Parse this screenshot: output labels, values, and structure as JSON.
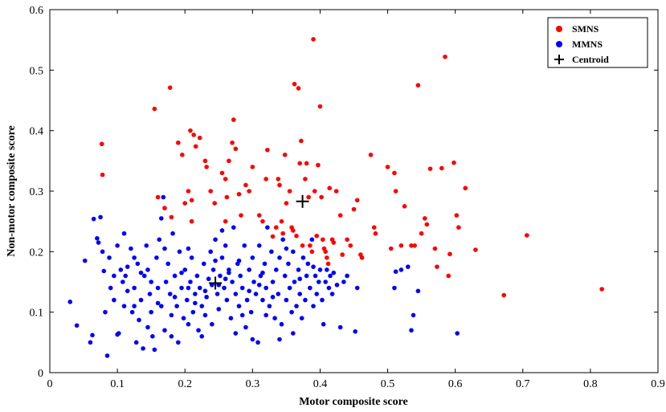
{
  "chart_data": {
    "type": "scatter",
    "xlabel": "Motor composite score",
    "ylabel": "Non-motor composite score",
    "xlim": [
      0,
      0.9
    ],
    "ylim": [
      0,
      0.6
    ],
    "x_ticks": [
      "0",
      "0.1",
      "0.2",
      "0.3",
      "0.4",
      "0.5",
      "0.6",
      "0.7",
      "0.8",
      "0.9"
    ],
    "y_ticks": [
      "0",
      "0.1",
      "0.2",
      "0.3",
      "0.4",
      "0.5",
      "0.6"
    ],
    "grid": false,
    "legend_position": "top-right",
    "series": [
      {
        "name": "SMNS",
        "color": "#ff0000",
        "marker": "circle",
        "points": [
          [
            0.077,
            0.378
          ],
          [
            0.078,
            0.327
          ],
          [
            0.155,
            0.436
          ],
          [
            0.178,
            0.471
          ],
          [
            0.16,
            0.29
          ],
          [
            0.17,
            0.272
          ],
          [
            0.18,
            0.257
          ],
          [
            0.19,
            0.38
          ],
          [
            0.196,
            0.36
          ],
          [
            0.205,
            0.3
          ],
          [
            0.21,
            0.285
          ],
          [
            0.208,
            0.4
          ],
          [
            0.213,
            0.393
          ],
          [
            0.216,
            0.374
          ],
          [
            0.222,
            0.388
          ],
          [
            0.23,
            0.35
          ],
          [
            0.232,
            0.34
          ],
          [
            0.238,
            0.3
          ],
          [
            0.244,
            0.28
          ],
          [
            0.2,
            0.28
          ],
          [
            0.21,
            0.25
          ],
          [
            0.255,
            0.33
          ],
          [
            0.26,
            0.32
          ],
          [
            0.262,
            0.29
          ],
          [
            0.26,
            0.25
          ],
          [
            0.265,
            0.35
          ],
          [
            0.27,
            0.38
          ],
          [
            0.272,
            0.418
          ],
          [
            0.275,
            0.37
          ],
          [
            0.28,
            0.295
          ],
          [
            0.283,
            0.26
          ],
          [
            0.29,
            0.31
          ],
          [
            0.295,
            0.3
          ],
          [
            0.3,
            0.34
          ],
          [
            0.31,
            0.26
          ],
          [
            0.315,
            0.25
          ],
          [
            0.32,
            0.32
          ],
          [
            0.322,
            0.368
          ],
          [
            0.33,
            0.225
          ],
          [
            0.335,
            0.24
          ],
          [
            0.338,
            0.32
          ],
          [
            0.34,
            0.31
          ],
          [
            0.343,
            0.25
          ],
          [
            0.345,
            0.23
          ],
          [
            0.348,
            0.36
          ],
          [
            0.35,
            0.28
          ],
          [
            0.355,
            0.3
          ],
          [
            0.358,
            0.24
          ],
          [
            0.36,
            0.235
          ],
          [
            0.362,
            0.477
          ],
          [
            0.365,
            0.226
          ],
          [
            0.368,
            0.47
          ],
          [
            0.37,
            0.346
          ],
          [
            0.372,
            0.383
          ],
          [
            0.374,
            0.21
          ],
          [
            0.378,
            0.32
          ],
          [
            0.38,
            0.346
          ],
          [
            0.383,
            0.29
          ],
          [
            0.385,
            0.21
          ],
          [
            0.388,
            0.2
          ],
          [
            0.39,
            0.551
          ],
          [
            0.392,
            0.3
          ],
          [
            0.395,
            0.226
          ],
          [
            0.397,
            0.343
          ],
          [
            0.4,
            0.44
          ],
          [
            0.402,
            0.29
          ],
          [
            0.404,
            0.22
          ],
          [
            0.406,
            0.205
          ],
          [
            0.408,
            0.2
          ],
          [
            0.41,
            0.19
          ],
          [
            0.412,
            0.18
          ],
          [
            0.414,
            0.305
          ],
          [
            0.418,
            0.22
          ],
          [
            0.42,
            0.215
          ],
          [
            0.424,
            0.3
          ],
          [
            0.43,
            0.26
          ],
          [
            0.433,
            0.195
          ],
          [
            0.44,
            0.22
          ],
          [
            0.445,
            0.21
          ],
          [
            0.45,
            0.27
          ],
          [
            0.455,
            0.285
          ],
          [
            0.46,
            0.195
          ],
          [
            0.462,
            0.19
          ],
          [
            0.475,
            0.36
          ],
          [
            0.48,
            0.24
          ],
          [
            0.482,
            0.23
          ],
          [
            0.5,
            0.34
          ],
          [
            0.505,
            0.205
          ],
          [
            0.51,
            0.33
          ],
          [
            0.512,
            0.3
          ],
          [
            0.52,
            0.21
          ],
          [
            0.525,
            0.275
          ],
          [
            0.535,
            0.21
          ],
          [
            0.54,
            0.21
          ],
          [
            0.545,
            0.475
          ],
          [
            0.55,
            0.23
          ],
          [
            0.555,
            0.255
          ],
          [
            0.558,
            0.245
          ],
          [
            0.563,
            0.337
          ],
          [
            0.57,
            0.205
          ],
          [
            0.573,
            0.175
          ],
          [
            0.58,
            0.338
          ],
          [
            0.585,
            0.522
          ],
          [
            0.59,
            0.16
          ],
          [
            0.592,
            0.196
          ],
          [
            0.598,
            0.347
          ],
          [
            0.602,
            0.26
          ],
          [
            0.605,
            0.24
          ],
          [
            0.615,
            0.305
          ],
          [
            0.63,
            0.203
          ],
          [
            0.672,
            0.128
          ],
          [
            0.706,
            0.227
          ],
          [
            0.817,
            0.138
          ]
        ]
      },
      {
        "name": "MMNS",
        "color": "#0000ff",
        "marker": "circle",
        "points": [
          [
            0.03,
            0.117
          ],
          [
            0.04,
            0.078
          ],
          [
            0.052,
            0.185
          ],
          [
            0.06,
            0.05
          ],
          [
            0.063,
            0.062
          ],
          [
            0.065,
            0.254
          ],
          [
            0.07,
            0.222
          ],
          [
            0.072,
            0.215
          ],
          [
            0.075,
            0.257
          ],
          [
            0.078,
            0.2
          ],
          [
            0.08,
            0.168
          ],
          [
            0.082,
            0.1
          ],
          [
            0.085,
            0.028
          ],
          [
            0.088,
            0.19
          ],
          [
            0.09,
            0.14
          ],
          [
            0.095,
            0.12
          ],
          [
            0.1,
            0.21
          ],
          [
            0.102,
            0.065
          ],
          [
            0.105,
            0.17
          ],
          [
            0.108,
            0.15
          ],
          [
            0.11,
            0.23
          ],
          [
            0.112,
            0.16
          ],
          [
            0.115,
            0.135
          ],
          [
            0.12,
            0.205
          ],
          [
            0.122,
            0.1
          ],
          [
            0.125,
            0.14
          ],
          [
            0.128,
            0.05
          ],
          [
            0.13,
            0.18
          ],
          [
            0.132,
            0.087
          ],
          [
            0.135,
            0.12
          ],
          [
            0.138,
            0.04
          ],
          [
            0.14,
            0.16
          ],
          [
            0.143,
            0.21
          ],
          [
            0.145,
            0.17
          ],
          [
            0.148,
            0.13
          ],
          [
            0.15,
            0.1
          ],
          [
            0.152,
            0.06
          ],
          [
            0.155,
            0.038
          ],
          [
            0.158,
            0.19
          ],
          [
            0.16,
            0.14
          ],
          [
            0.162,
            0.22
          ],
          [
            0.165,
            0.11
          ],
          [
            0.168,
            0.29
          ],
          [
            0.17,
            0.07
          ],
          [
            0.172,
            0.15
          ],
          [
            0.175,
            0.18
          ],
          [
            0.178,
            0.13
          ],
          [
            0.18,
            0.06
          ],
          [
            0.182,
            0.23
          ],
          [
            0.185,
            0.16
          ],
          [
            0.188,
            0.11
          ],
          [
            0.19,
            0.05
          ],
          [
            0.192,
            0.2
          ],
          [
            0.195,
            0.14
          ],
          [
            0.198,
            0.09
          ],
          [
            0.2,
            0.17
          ],
          [
            0.203,
            0.12
          ],
          [
            0.205,
            0.08
          ],
          [
            0.208,
            0.15
          ],
          [
            0.21,
            0.19
          ],
          [
            0.212,
            0.1
          ],
          [
            0.215,
            0.13
          ],
          [
            0.218,
            0.16
          ],
          [
            0.22,
            0.07
          ],
          [
            0.222,
            0.14
          ],
          [
            0.225,
            0.11
          ],
          [
            0.228,
            0.18
          ],
          [
            0.23,
            0.095
          ],
          [
            0.232,
            0.125
          ],
          [
            0.235,
            0.155
          ],
          [
            0.238,
            0.2
          ],
          [
            0.24,
            0.08
          ],
          [
            0.242,
            0.17
          ],
          [
            0.245,
            0.22
          ],
          [
            0.248,
            0.13
          ],
          [
            0.25,
            0.105
          ],
          [
            0.252,
            0.16
          ],
          [
            0.255,
            0.19
          ],
          [
            0.258,
            0.14
          ],
          [
            0.26,
            0.21
          ],
          [
            0.262,
            0.12
          ],
          [
            0.265,
            0.17
          ],
          [
            0.268,
            0.09
          ],
          [
            0.27,
            0.15
          ],
          [
            0.272,
            0.24
          ],
          [
            0.275,
            0.13
          ],
          [
            0.278,
            0.18
          ],
          [
            0.28,
            0.11
          ],
          [
            0.282,
            0.16
          ],
          [
            0.285,
            0.14
          ],
          [
            0.288,
            0.21
          ],
          [
            0.29,
            0.075
          ],
          [
            0.292,
            0.12
          ],
          [
            0.295,
            0.17
          ],
          [
            0.298,
            0.1
          ],
          [
            0.3,
            0.19
          ],
          [
            0.302,
            0.15
          ],
          [
            0.305,
            0.13
          ],
          [
            0.308,
            0.05
          ],
          [
            0.31,
            0.21
          ],
          [
            0.312,
            0.16
          ],
          [
            0.315,
            0.12
          ],
          [
            0.318,
            0.18
          ],
          [
            0.32,
            0.14
          ],
          [
            0.322,
            0.24
          ],
          [
            0.325,
            0.11
          ],
          [
            0.328,
            0.2
          ],
          [
            0.33,
            0.15
          ],
          [
            0.333,
            0.09
          ],
          [
            0.335,
            0.17
          ],
          [
            0.338,
            0.13
          ],
          [
            0.34,
            0.19
          ],
          [
            0.343,
            0.08
          ],
          [
            0.345,
            0.22
          ],
          [
            0.348,
            0.16
          ],
          [
            0.35,
            0.12
          ],
          [
            0.353,
            0.18
          ],
          [
            0.355,
            0.14
          ],
          [
            0.358,
            0.1
          ],
          [
            0.36,
            0.2
          ],
          [
            0.362,
            0.15
          ],
          [
            0.365,
            0.11
          ],
          [
            0.368,
            0.17
          ],
          [
            0.37,
            0.13
          ],
          [
            0.373,
            0.09
          ],
          [
            0.375,
            0.19
          ],
          [
            0.378,
            0.12
          ],
          [
            0.38,
            0.16
          ],
          [
            0.382,
            0.18
          ],
          [
            0.385,
            0.14
          ],
          [
            0.388,
            0.22
          ],
          [
            0.39,
            0.11
          ],
          [
            0.393,
            0.16
          ],
          [
            0.395,
            0.13
          ],
          [
            0.398,
            0.15
          ],
          [
            0.4,
            0.17
          ],
          [
            0.403,
            0.12
          ],
          [
            0.405,
            0.08
          ],
          [
            0.408,
            0.15
          ],
          [
            0.41,
            0.17
          ],
          [
            0.413,
            0.14
          ],
          [
            0.415,
            0.16
          ],
          [
            0.418,
            0.13
          ],
          [
            0.42,
            0.165
          ],
          [
            0.425,
            0.145
          ],
          [
            0.43,
            0.075
          ],
          [
            0.435,
            0.15
          ],
          [
            0.44,
            0.16
          ],
          [
            0.452,
            0.068
          ],
          [
            0.455,
            0.14
          ],
          [
            0.51,
            0.14
          ],
          [
            0.512,
            0.167
          ],
          [
            0.52,
            0.17
          ],
          [
            0.53,
            0.175
          ],
          [
            0.535,
            0.07
          ],
          [
            0.538,
            0.095
          ],
          [
            0.545,
            0.135
          ],
          [
            0.603,
            0.065
          ],
          [
            0.1,
            0.063
          ],
          [
            0.115,
            0.175
          ],
          [
            0.125,
            0.19
          ],
          [
            0.145,
            0.075
          ],
          [
            0.165,
            0.255
          ],
          [
            0.18,
            0.095
          ],
          [
            0.205,
            0.205
          ],
          [
            0.225,
            0.06
          ],
          [
            0.255,
            0.235
          ],
          [
            0.275,
            0.065
          ],
          [
            0.3,
            0.055
          ],
          [
            0.32,
            0.095
          ],
          [
            0.34,
            0.055
          ],
          [
            0.36,
            0.065
          ],
          [
            0.265,
            0.165
          ],
          [
            0.23,
            0.135
          ],
          [
            0.195,
            0.165
          ],
          [
            0.17,
            0.205
          ],
          [
            0.15,
            0.15
          ],
          [
            0.135,
            0.165
          ],
          [
            0.24,
            0.145
          ],
          [
            0.26,
            0.155
          ],
          [
            0.28,
            0.185
          ],
          [
            0.31,
            0.145
          ],
          [
            0.33,
            0.125
          ],
          [
            0.35,
            0.205
          ],
          [
            0.37,
            0.155
          ],
          [
            0.39,
            0.175
          ],
          [
            0.285,
            0.095
          ],
          [
            0.245,
            0.185
          ],
          [
            0.215,
            0.115
          ],
          [
            0.185,
            0.125
          ],
          [
            0.16,
            0.115
          ],
          [
            0.125,
            0.11
          ],
          [
            0.095,
            0.16
          ],
          [
            0.11,
            0.11
          ],
          [
            0.205,
            0.14
          ],
          [
            0.25,
            0.145
          ],
          [
            0.295,
            0.135
          ],
          [
            0.315,
            0.165
          ]
        ]
      }
    ],
    "centroids": {
      "name": "Centroid",
      "marker": "plus",
      "color": "#000000",
      "points": [
        [
          0.245,
          0.148
        ],
        [
          0.374,
          0.283
        ]
      ]
    }
  }
}
